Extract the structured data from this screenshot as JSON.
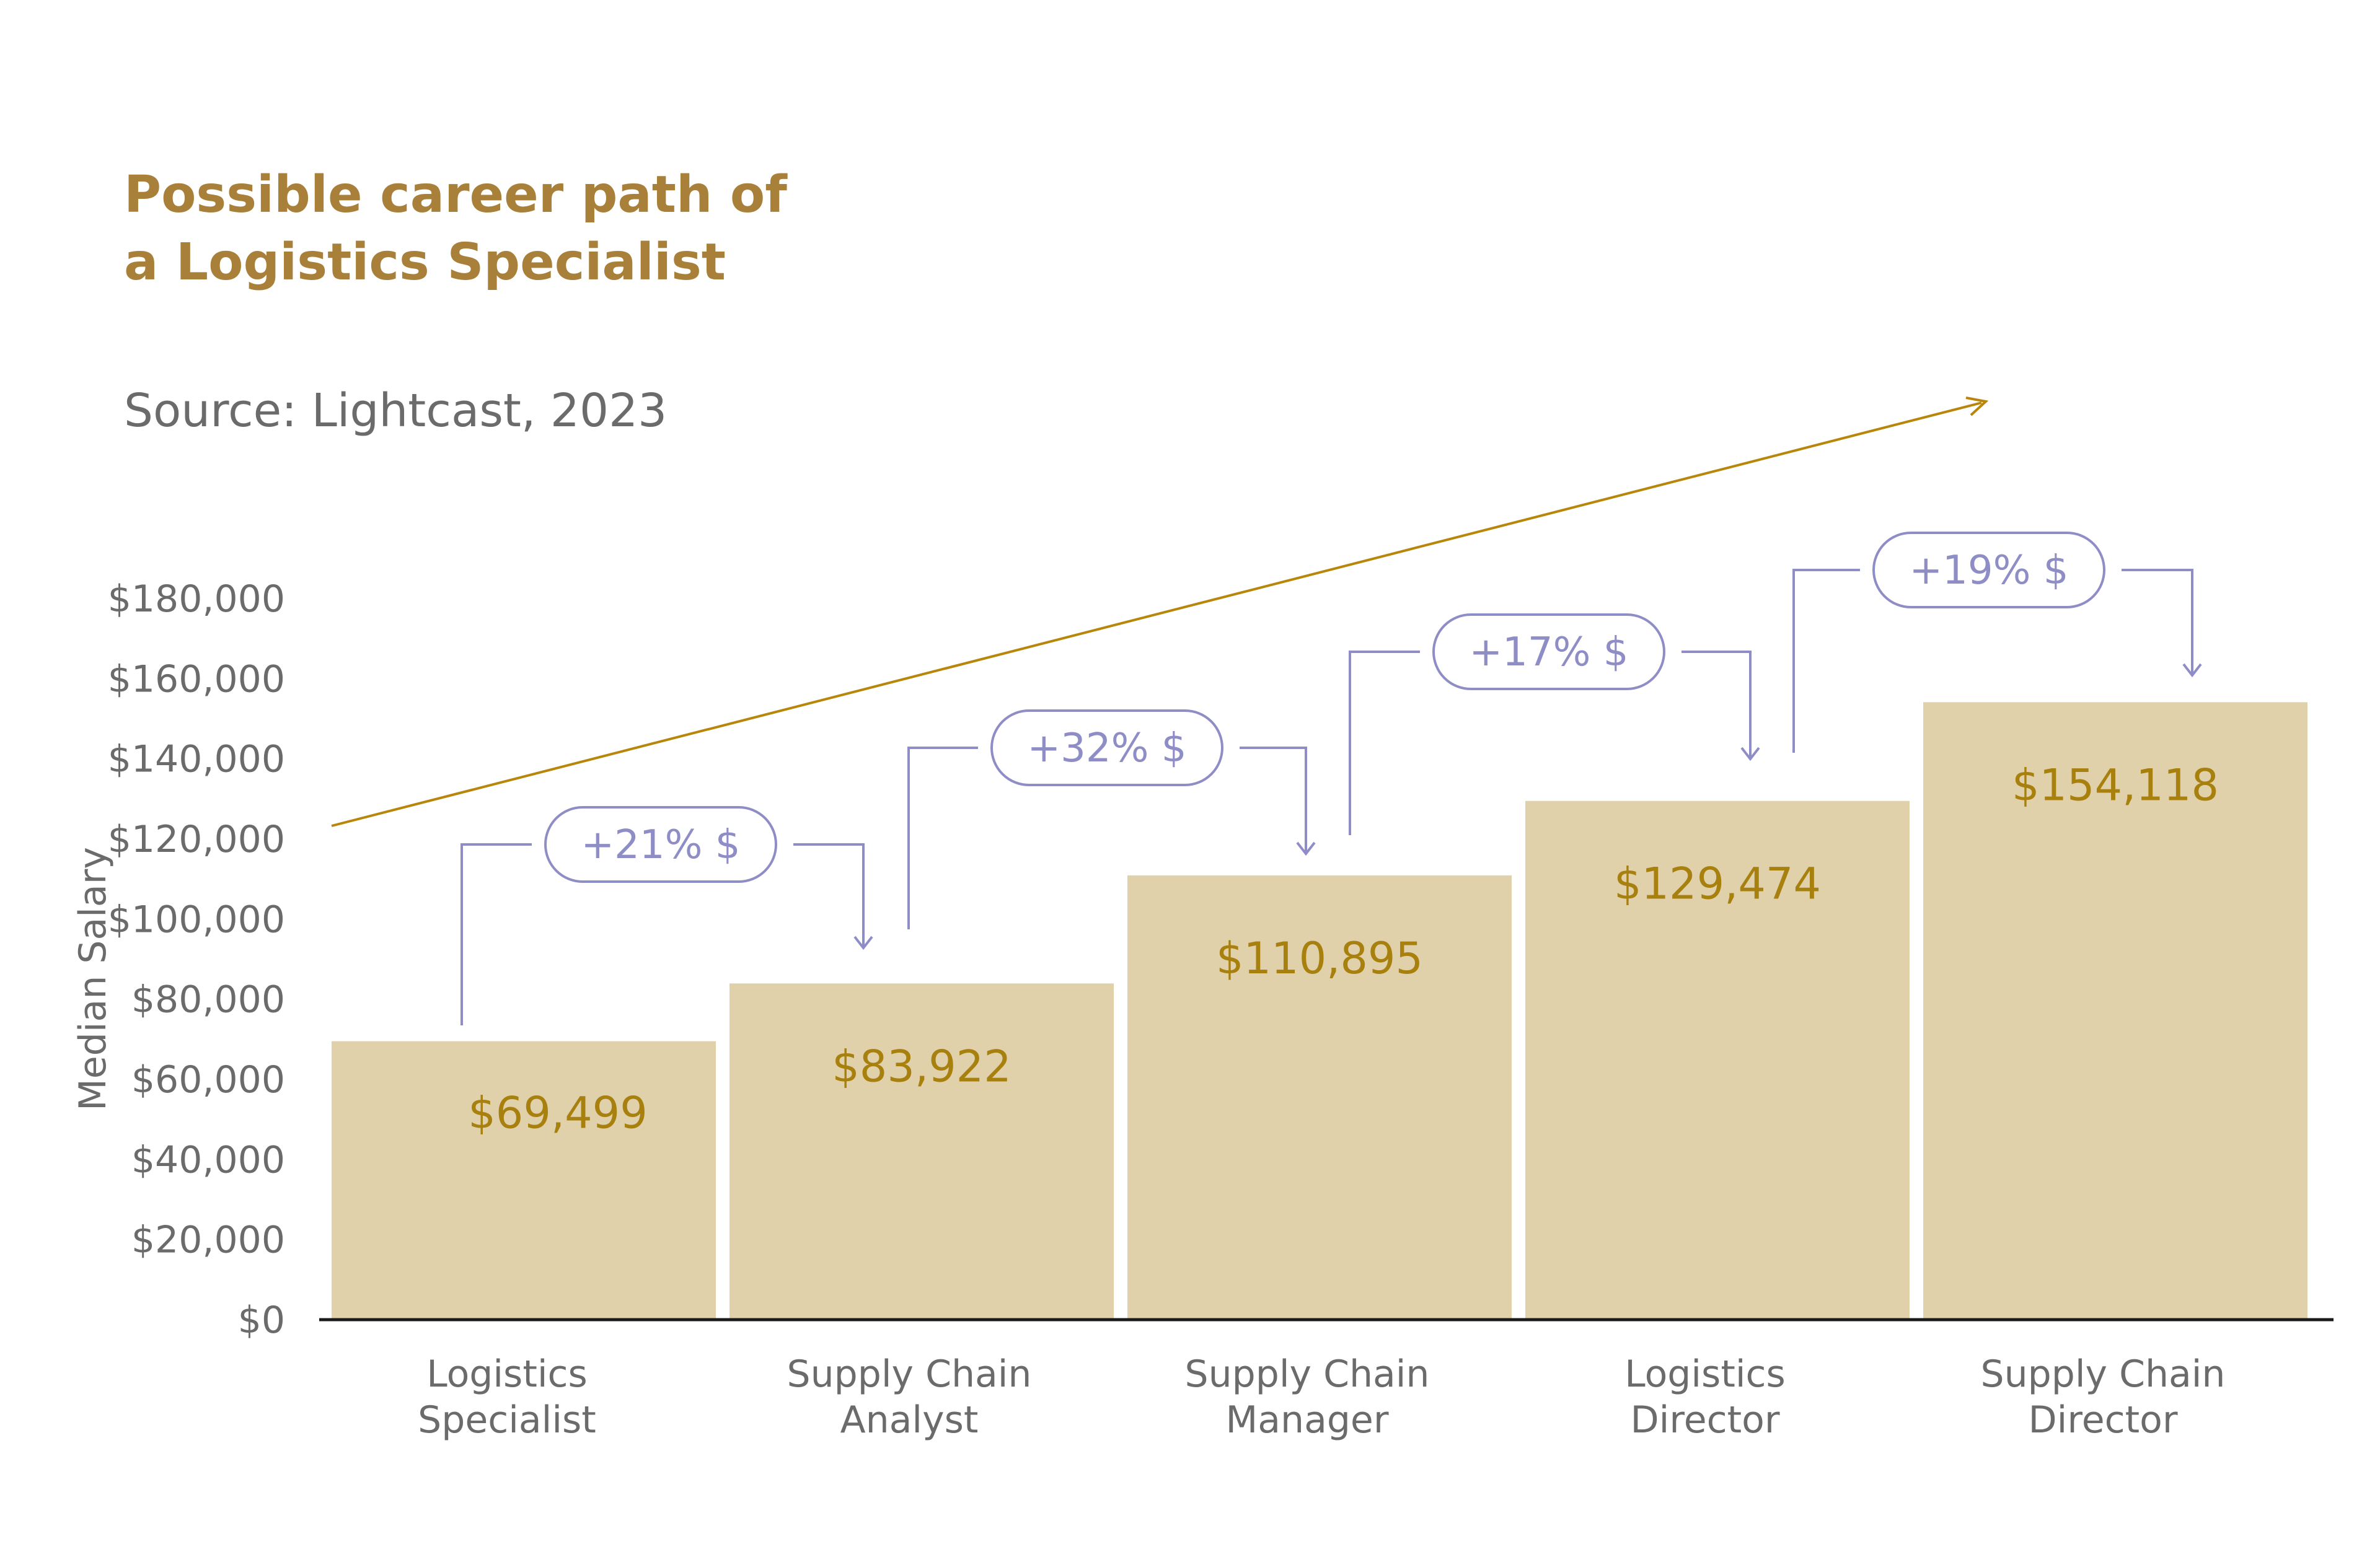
{
  "chart_data": {
    "type": "bar",
    "title": [
      "Possible career path of",
      "a Logistics Specialist"
    ],
    "subtitle": "Source: Lightcast, 2023",
    "ylabel": "Median Salary",
    "xlabel": "",
    "ylim": [
      0,
      180000
    ],
    "yticks": [
      0,
      20000,
      40000,
      60000,
      80000,
      100000,
      120000,
      140000,
      160000,
      180000
    ],
    "ytick_labels": [
      "$0",
      "$20,000",
      "$40,000",
      "$60,000",
      "$80,000",
      "$100,000",
      "$120,000",
      "$140,000",
      "$160,000",
      "$180,000"
    ],
    "categories": [
      [
        "Logistics",
        "Specialist"
      ],
      [
        "Supply Chain",
        "Analyst"
      ],
      [
        "Supply Chain",
        "Manager"
      ],
      [
        "Logistics",
        "Director"
      ],
      [
        "Supply Chain",
        "Director"
      ]
    ],
    "values": [
      69499,
      83922,
      110895,
      129474,
      154118
    ],
    "value_labels": [
      "$69,499",
      "$83,922",
      "$110,895",
      "$129,474",
      "$154,118"
    ],
    "increases": [
      "+21% $",
      "+32% $",
      "+17% $",
      "+19% $"
    ],
    "grid": false,
    "trend_arrow": true,
    "colors": {
      "bar": "#e0d1ab",
      "title": "#a8803a",
      "value_text": "#a8800e",
      "trend_arrow": "#b8860b",
      "increase_annotation": "#8f8dc6",
      "axis_text": "#6b6b6b",
      "baseline": "#1a1a1a"
    }
  }
}
